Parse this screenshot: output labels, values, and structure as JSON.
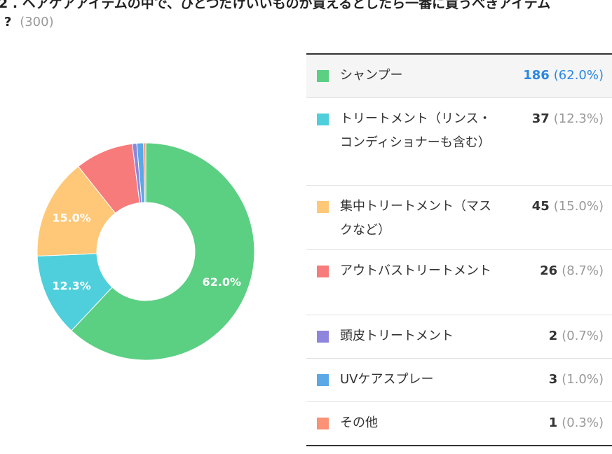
{
  "question": {
    "text": "2 . ヘアケアアイテムの中で、ひとつだけいいものが買えるとしたら一番に買うべきアイテム",
    "mark": "?",
    "respondents": "(300)"
  },
  "chart_data": {
    "type": "pie",
    "donut": true,
    "categories": [
      "シャンプー",
      "トリートメント（リンス・コンディショナーも含む）",
      "集中トリートメント（マスクなど）",
      "アウトバストリートメント",
      "頭皮トリートメント",
      "UVケアスプレー",
      "その他"
    ],
    "values": [
      186,
      37,
      45,
      26,
      2,
      3,
      1
    ],
    "percentages": [
      "62.0%",
      "12.3%",
      "15.0%",
      "8.7%",
      "0.7%",
      "1.0%",
      "0.3%"
    ],
    "slice_labels": [
      "62.0%",
      "12.3%",
      "15.0%",
      "",
      "",
      "",
      ""
    ],
    "colors": [
      "#5bcf82",
      "#4ecfdb",
      "#fec878",
      "#f77b7b",
      "#8e86dc",
      "#5aa8e6",
      "#fb9176"
    ]
  },
  "legend": {
    "rows": [
      {
        "label": "シャンプー",
        "count": "186",
        "pct": "(62.0%)",
        "color": "#5bcf82"
      },
      {
        "label": "トリートメント（リンス・コンディショナーも含む）",
        "count": "37",
        "pct": "(12.3%)",
        "color": "#4ecfdb"
      },
      {
        "label": "集中トリートメント（マスクなど）",
        "count": "45",
        "pct": "(15.0%)",
        "color": "#fec878"
      },
      {
        "label": "アウトバストリートメント",
        "count": "26",
        "pct": "(8.7%)",
        "color": "#f77b7b"
      },
      {
        "label": "頭皮トリートメント",
        "count": "2",
        "pct": "(0.7%)",
        "color": "#8e86dc"
      },
      {
        "label": "UVケアスプレー",
        "count": "3",
        "pct": "(1.0%)",
        "color": "#5aa8e6"
      },
      {
        "label": "その他",
        "count": "1",
        "pct": "(0.3%)",
        "color": "#fb9176"
      }
    ]
  }
}
